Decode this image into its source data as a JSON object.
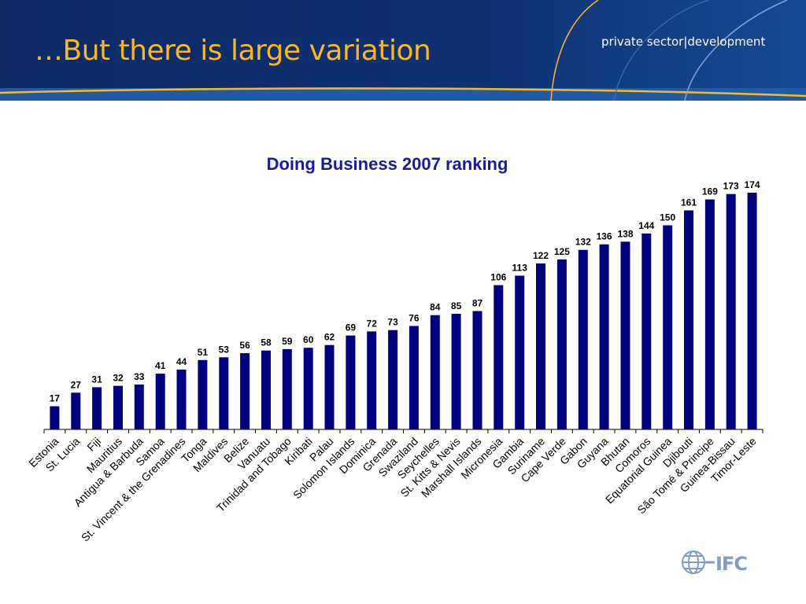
{
  "slide": {
    "title": "…But there is large variation",
    "brand_text": "private sector|development",
    "logo_text": "IFC"
  },
  "colors": {
    "header_navy": "#0d2c6c",
    "header_band": "#1f5ca8",
    "title_gold": "#ffb81c",
    "bar_navy": "#000080",
    "chart_title_blue": "#1a1aa0",
    "logo_blue": "#7f9cc3"
  },
  "chart_data": {
    "type": "bar",
    "title": "Doing Business 2007 ranking",
    "xlabel": "",
    "ylabel": "",
    "ylim": [
      0,
      174
    ],
    "grid": false,
    "legend": "none",
    "data_labels": true,
    "categories": [
      "Estonia",
      "St. Lucia",
      "Fiji",
      "Mauritius",
      "Antigua & Barbuda",
      "Samoa",
      "St. Vincent & the Grenadines",
      "Tonga",
      "Maldives",
      "Belize",
      "Vanuatu",
      "Trinidad and Tobago",
      "Kiribati",
      "Palau",
      "Solomon Islands",
      "Dominica",
      "Grenada",
      "Swaziland",
      "Seychelles",
      "St. Kitts & Nevis",
      "Marshall Islands",
      "Micronesia",
      "Gambia",
      "Suriname",
      "Cape Verde",
      "Gabon",
      "Guyana",
      "Bhutan",
      "Comoros",
      "Equatorial Guinea",
      "Djibouti",
      "São Tomé & Principe",
      "Guinea-Bissau",
      "Timor-Leste"
    ],
    "values": [
      17,
      27,
      31,
      32,
      33,
      41,
      44,
      51,
      53,
      56,
      58,
      59,
      60,
      62,
      69,
      72,
      73,
      76,
      84,
      85,
      87,
      106,
      113,
      122,
      125,
      132,
      136,
      138,
      144,
      150,
      161,
      169,
      173,
      174
    ]
  }
}
